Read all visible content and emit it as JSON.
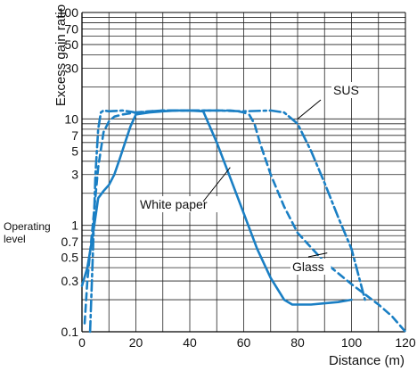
{
  "chart_data": {
    "type": "line",
    "xlabel": "Distance (m)",
    "ylabel": "Excess gain ratio",
    "x_ticks": [
      0,
      20,
      40,
      60,
      80,
      100,
      120
    ],
    "x_tick_labels": [
      "0",
      "20",
      "40",
      "60",
      "80",
      "100",
      "120"
    ],
    "xlim": [
      0,
      120
    ],
    "ylim": [
      0.1,
      100
    ],
    "y_scale": "log",
    "y_ticks": [
      0.1,
      0.3,
      0.5,
      0.7,
      1,
      3,
      5,
      7,
      10,
      30,
      50,
      70,
      100
    ],
    "y_tick_labels": [
      "0.1",
      "0.3",
      "0.5",
      "0.7",
      "1",
      "3",
      "5",
      "7",
      "10",
      "30",
      "50",
      "70",
      "100"
    ],
    "operating_level": {
      "value": 1,
      "label_line1": "Operating",
      "label_line2": "level"
    },
    "grid": true,
    "line_color": "#1a7fc4",
    "series": [
      {
        "name": "White paper",
        "style": "solid",
        "x": [
          0,
          2,
          4,
          6,
          8,
          10,
          12,
          14,
          16,
          18,
          20,
          25,
          30,
          35,
          40,
          45,
          50,
          55,
          60,
          65,
          70,
          75,
          78,
          80,
          85,
          90,
          95,
          100
        ],
        "y": [
          0.27,
          0.4,
          0.8,
          1.8,
          2.1,
          2.4,
          3.0,
          4.2,
          6.0,
          8.5,
          11.0,
          11.5,
          11.8,
          12.0,
          12.0,
          11.8,
          6.0,
          2.8,
          1.3,
          0.6,
          0.32,
          0.2,
          0.18,
          0.18,
          0.18,
          0.185,
          0.19,
          0.2
        ]
      },
      {
        "name": "Glass",
        "style": "dashed",
        "x": [
          1,
          2,
          4,
          6,
          8,
          10,
          12,
          15,
          20,
          25,
          30,
          35,
          40,
          45,
          50,
          55,
          58,
          60,
          62,
          64,
          66,
          70,
          75,
          80,
          90,
          100,
          110,
          115,
          120
        ],
        "y": [
          0.12,
          0.3,
          1.0,
          3.5,
          7.5,
          9.5,
          10.5,
          11.0,
          11.5,
          11.8,
          12.0,
          12.0,
          12.0,
          12.0,
          12.0,
          12.0,
          11.8,
          11.5,
          11.0,
          9.0,
          6.0,
          3.0,
          1.5,
          0.85,
          0.45,
          0.28,
          0.18,
          0.14,
          0.1
        ]
      },
      {
        "name": "SUS",
        "style": "dash-dot",
        "x": [
          3,
          4,
          5,
          6,
          7,
          8,
          10,
          15,
          20,
          30,
          40,
          50,
          60,
          70,
          75,
          80,
          85,
          90,
          95,
          100,
          105
        ],
        "y": [
          0.1,
          0.5,
          3.0,
          8.0,
          11.5,
          12.0,
          11.8,
          12.0,
          11.5,
          12.0,
          12.0,
          12.0,
          11.8,
          12.0,
          11.5,
          9.0,
          5.0,
          2.5,
          1.2,
          0.6,
          0.2
        ]
      }
    ],
    "annotations": [
      {
        "text": "White paper",
        "series": "White paper",
        "anchor": [
          55,
          3.5
        ]
      },
      {
        "text": "Glass",
        "series": "Glass",
        "anchor": [
          91,
          0.55
        ]
      },
      {
        "text": "SUS",
        "series": "SUS",
        "anchor": [
          80,
          10
        ]
      }
    ]
  }
}
